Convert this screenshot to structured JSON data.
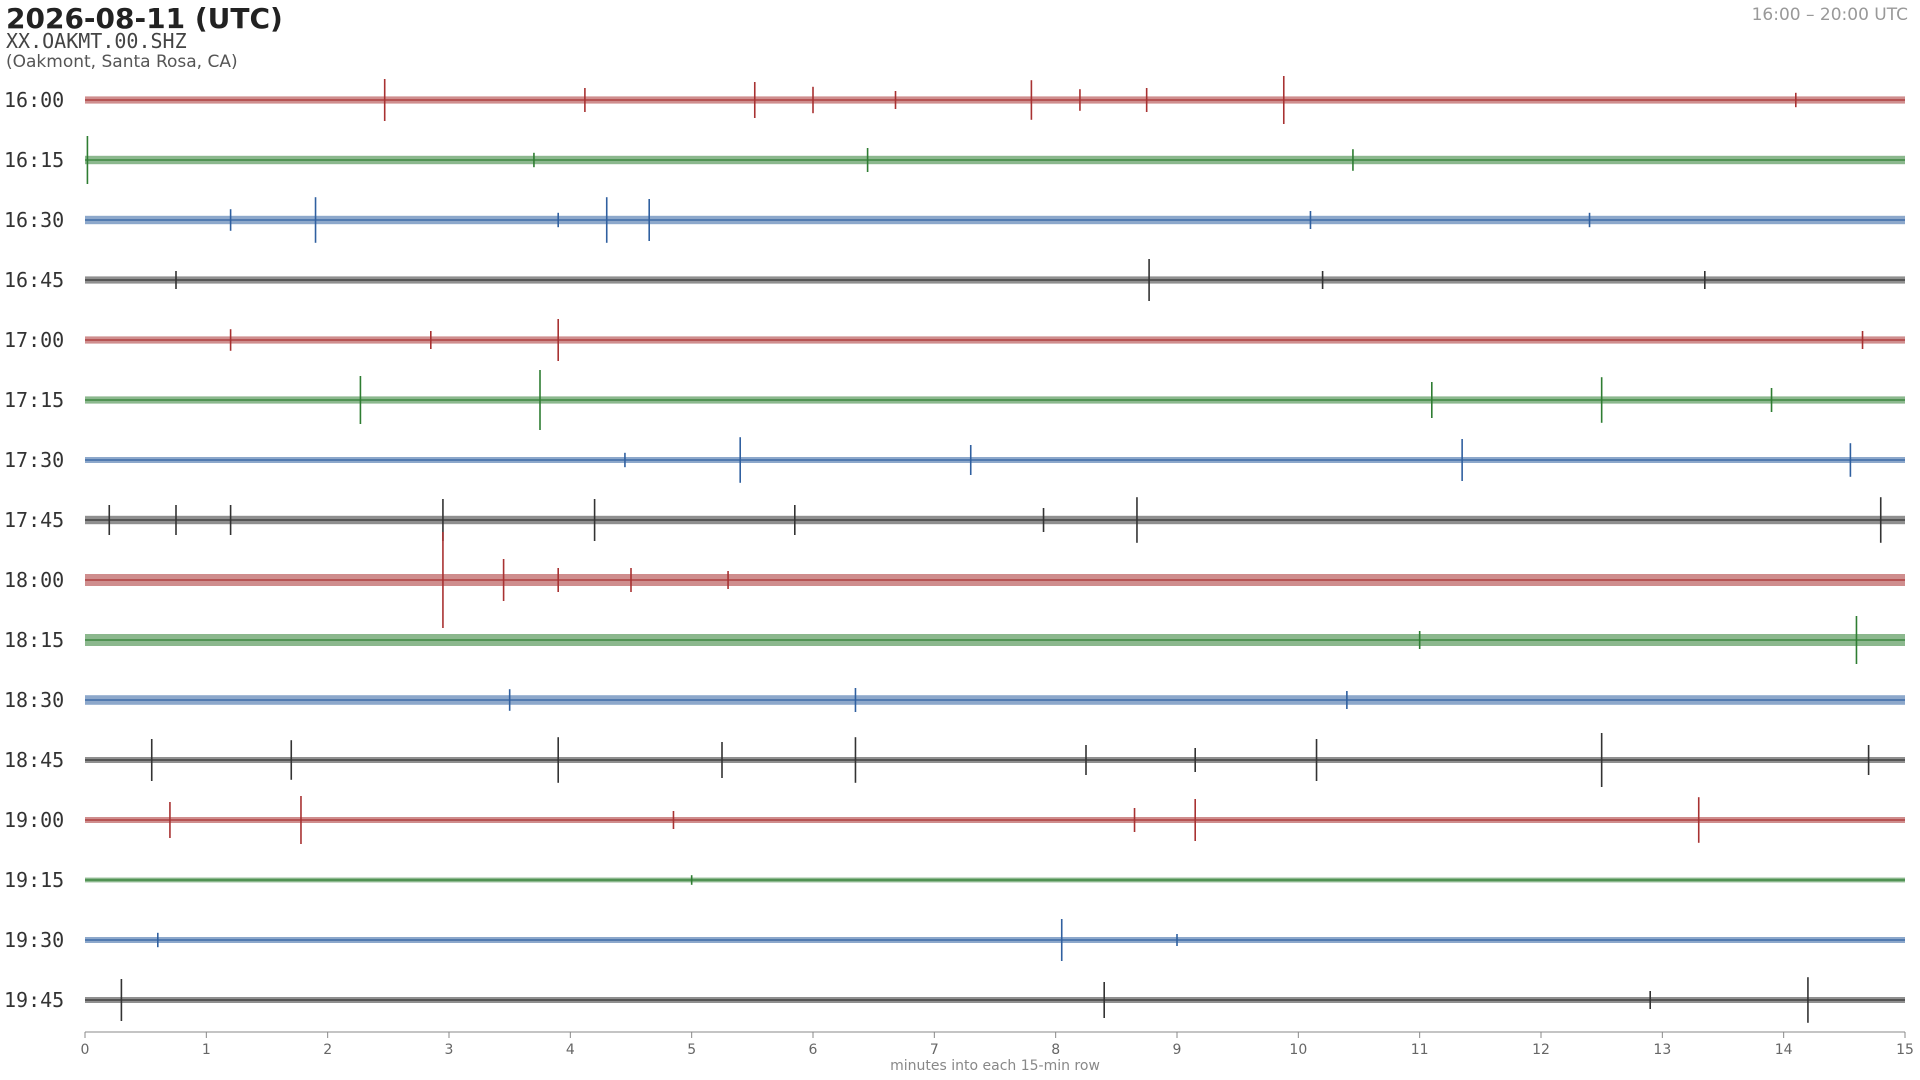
{
  "chart_data": {
    "type": "helicorder",
    "title": "2026-08-11  (UTC)",
    "station": "XX.OAKMT.00.SHZ",
    "location": "(Oakmont, Santa Rosa, CA)",
    "time_range": "16:00 – 20:00 UTC",
    "xlabel": "minutes into each 15-min row",
    "xlim": [
      0,
      15
    ],
    "xticks": [
      0,
      1,
      2,
      3,
      4,
      5,
      6,
      7,
      8,
      9,
      10,
      11,
      12,
      13,
      14,
      15
    ],
    "series": [
      {
        "name": "16:00",
        "color": "#a83232",
        "noise": 0.06,
        "x": [
          2.47,
          4.12,
          5.52,
          6.0,
          6.68,
          7.8,
          8.2,
          8.75,
          9.88,
          14.1
        ],
        "values": [
          0.35,
          0.2,
          0.3,
          0.22,
          0.15,
          0.33,
          0.18,
          0.2,
          0.4,
          0.12
        ]
      },
      {
        "name": "16:15",
        "color": "#2e7d32",
        "noise": 0.07,
        "x": [
          0.02,
          3.7,
          6.45,
          10.45
        ],
        "values": [
          0.4,
          0.12,
          0.2,
          0.18
        ]
      },
      {
        "name": "16:30",
        "color": "#3060a0",
        "noise": 0.07,
        "x": [
          1.2,
          1.9,
          3.9,
          4.3,
          4.65,
          10.1,
          12.4
        ],
        "values": [
          0.18,
          0.38,
          0.12,
          0.38,
          0.35,
          0.15,
          0.12
        ]
      },
      {
        "name": "16:45",
        "color": "#333333",
        "noise": 0.06,
        "x": [
          0.75,
          8.77,
          10.2,
          13.35
        ],
        "values": [
          0.15,
          0.35,
          0.15,
          0.15
        ]
      },
      {
        "name": "17:00",
        "color": "#a83232",
        "noise": 0.06,
        "x": [
          1.2,
          2.85,
          3.9,
          14.65
        ],
        "values": [
          0.18,
          0.15,
          0.35,
          0.15
        ]
      },
      {
        "name": "17:15",
        "color": "#2e7d32",
        "noise": 0.06,
        "x": [
          2.27,
          3.75,
          11.1,
          12.5,
          13.9
        ],
        "values": [
          0.4,
          0.5,
          0.3,
          0.38,
          0.2
        ]
      },
      {
        "name": "17:30",
        "color": "#3060a0",
        "noise": 0.05,
        "x": [
          4.45,
          5.4,
          7.3,
          11.35,
          14.55
        ],
        "values": [
          0.12,
          0.38,
          0.25,
          0.35,
          0.28
        ]
      },
      {
        "name": "17:45",
        "color": "#333333",
        "noise": 0.07,
        "x": [
          0.2,
          0.75,
          1.2,
          2.95,
          4.2,
          5.85,
          7.9,
          8.67,
          14.8
        ],
        "values": [
          0.25,
          0.25,
          0.25,
          0.35,
          0.35,
          0.25,
          0.2,
          0.38,
          0.38
        ]
      },
      {
        "name": "18:00",
        "color": "#a83232",
        "noise": 0.1,
        "x": [
          2.95,
          3.45,
          3.9,
          4.5,
          5.3
        ],
        "values": [
          0.8,
          0.35,
          0.2,
          0.2,
          0.15
        ]
      },
      {
        "name": "18:15",
        "color": "#2e7d32",
        "noise": 0.1,
        "x": [
          11.0,
          14.6
        ],
        "values": [
          0.15,
          0.4
        ]
      },
      {
        "name": "18:30",
        "color": "#3060a0",
        "noise": 0.08,
        "x": [
          3.5,
          6.35,
          10.4
        ],
        "values": [
          0.18,
          0.2,
          0.15
        ]
      },
      {
        "name": "18:45",
        "color": "#333333",
        "noise": 0.05,
        "x": [
          0.55,
          1.7,
          3.9,
          5.25,
          6.35,
          8.25,
          9.15,
          10.15,
          12.5,
          14.7
        ],
        "values": [
          0.35,
          0.33,
          0.38,
          0.3,
          0.38,
          0.25,
          0.2,
          0.35,
          0.45,
          0.25
        ]
      },
      {
        "name": "19:00",
        "color": "#a83232",
        "noise": 0.05,
        "x": [
          0.7,
          1.78,
          4.85,
          8.65,
          9.15,
          13.3
        ],
        "values": [
          0.3,
          0.4,
          0.15,
          0.2,
          0.35,
          0.38
        ]
      },
      {
        "name": "19:15",
        "color": "#2e7d32",
        "noise": 0.04,
        "x": [
          5.0
        ],
        "values": [
          0.08
        ]
      },
      {
        "name": "19:30",
        "color": "#3060a0",
        "noise": 0.05,
        "x": [
          0.6,
          8.05,
          9.0
        ],
        "values": [
          0.12,
          0.35,
          0.1
        ]
      },
      {
        "name": "19:45",
        "color": "#333333",
        "noise": 0.05,
        "x": [
          0.3,
          8.4,
          12.9,
          14.2
        ],
        "values": [
          0.35,
          0.3,
          0.15,
          0.38
        ]
      }
    ]
  }
}
